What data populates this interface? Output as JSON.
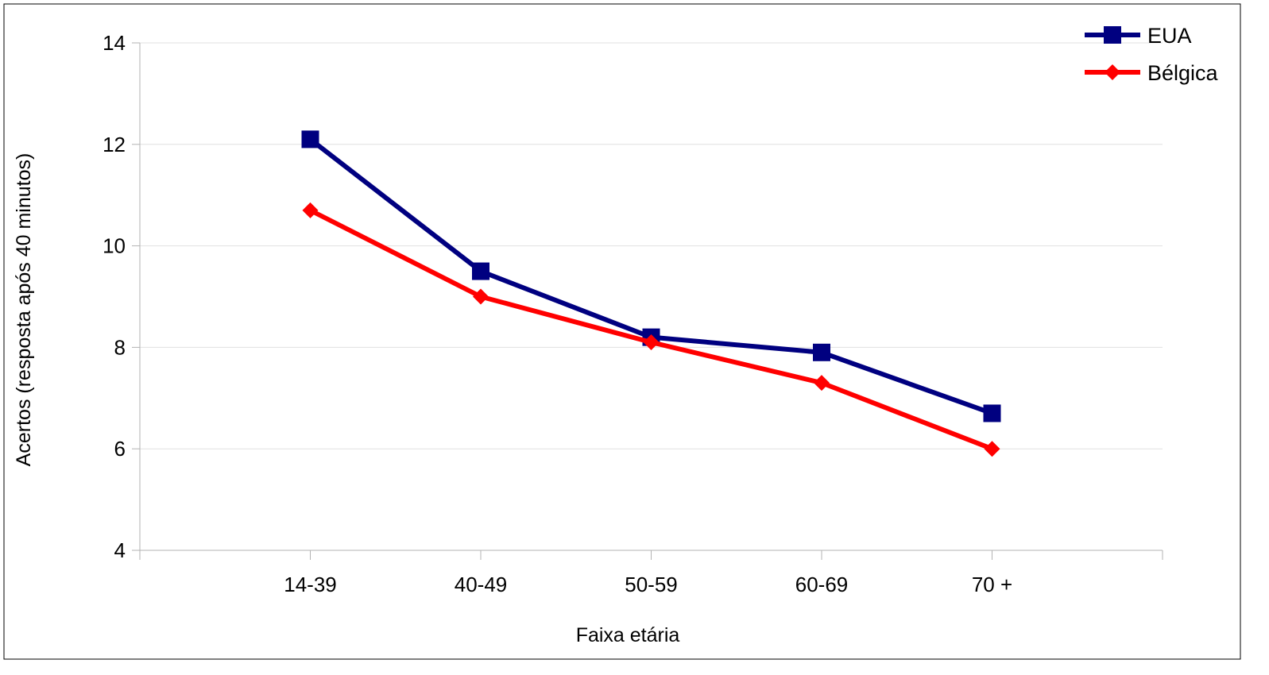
{
  "chart_data": {
    "type": "line",
    "title": "",
    "xlabel": "Faixa etária",
    "ylabel": "Acertos (resposta após 40 minutos)",
    "categories": [
      "14-39",
      "40-49",
      "50-59",
      "60-69",
      "70 +"
    ],
    "ylim": [
      4,
      14
    ],
    "yticks": [
      4,
      6,
      8,
      10,
      12,
      14
    ],
    "grid": true,
    "legend_position": "top-right",
    "series": [
      {
        "name": "EUA",
        "color": "#000080",
        "marker": "square",
        "values": [
          12.1,
          9.5,
          8.2,
          7.9,
          6.7
        ]
      },
      {
        "name": "Bélgica",
        "color": "#ff0000",
        "marker": "diamond",
        "values": [
          10.7,
          9.0,
          8.1,
          7.3,
          6.0
        ]
      }
    ]
  }
}
